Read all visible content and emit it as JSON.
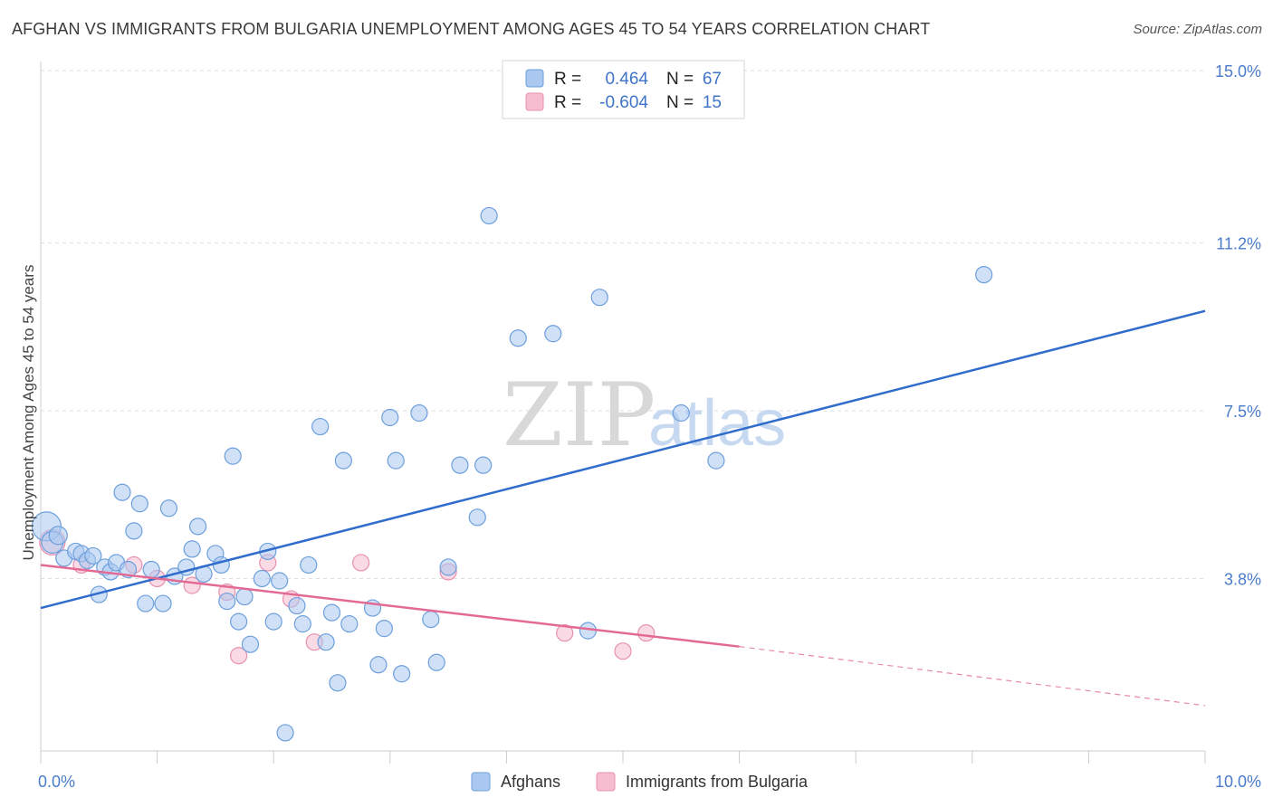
{
  "chart_data": {
    "type": "scatter",
    "title": "AFGHAN VS IMMIGRANTS FROM BULGARIA UNEMPLOYMENT AMONG AGES 45 TO 54 YEARS CORRELATION CHART",
    "source": "Source: ZipAtlas.com",
    "watermark": {
      "zip": "ZIP",
      "atlas": "atlas"
    },
    "ylabel": "Unemployment Among Ages 45 to 54 years",
    "xlabel": "",
    "xlim": [
      0,
      10
    ],
    "ylim": [
      0,
      15
    ],
    "x_ticks": [
      {
        "value": 0,
        "label": "0.0%"
      },
      {
        "value": 10,
        "label": "10.0%"
      }
    ],
    "y_ticks": [
      {
        "value": 3.8,
        "label": "3.8%"
      },
      {
        "value": 7.5,
        "label": "7.5%"
      },
      {
        "value": 11.2,
        "label": "11.2%"
      },
      {
        "value": 15.0,
        "label": "15.0%"
      }
    ],
    "colors": {
      "blue_fill": "#aac8f0",
      "blue_stroke": "#6c9fdc",
      "blue_line": "#2f6ccc",
      "pink_fill": "#f6bccf",
      "pink_stroke": "#e891b0",
      "pink_line": "#e26a95",
      "grid": "#dddddd",
      "axis": "#cccccc"
    },
    "legend_top": {
      "rows": [
        {
          "r_label": "R =",
          "r_value": "0.464",
          "n_label": "N =",
          "n_value": "67",
          "series": 0
        },
        {
          "r_label": "R =",
          "r_value": "-0.604",
          "n_label": "N =",
          "n_value": "15",
          "series": 1
        }
      ]
    },
    "series": [
      {
        "name": "Afghans",
        "trend": {
          "x0": 0,
          "y0": 3.15,
          "x1": 10,
          "y1": 9.7
        },
        "points": [
          [
            0.05,
            4.95,
            16
          ],
          [
            0.1,
            4.6,
            12
          ],
          [
            0.15,
            4.75,
            10
          ],
          [
            0.2,
            4.25,
            9
          ],
          [
            0.3,
            4.4,
            9
          ],
          [
            0.35,
            4.35,
            9
          ],
          [
            0.4,
            4.2,
            9
          ],
          [
            0.45,
            4.3,
            9
          ],
          [
            0.5,
            3.45,
            9
          ],
          [
            0.55,
            4.05,
            9
          ],
          [
            0.6,
            3.95,
            9
          ],
          [
            0.65,
            4.15,
            9
          ],
          [
            0.7,
            5.7,
            9
          ],
          [
            0.75,
            4.0,
            9
          ],
          [
            0.8,
            4.85,
            9
          ],
          [
            0.85,
            5.45,
            9
          ],
          [
            0.9,
            3.25,
            9
          ],
          [
            0.95,
            4.0,
            9
          ],
          [
            1.05,
            3.25,
            9
          ],
          [
            1.1,
            5.35,
            9
          ],
          [
            1.15,
            3.85,
            9
          ],
          [
            1.25,
            4.05,
            9
          ],
          [
            1.3,
            4.45,
            9
          ],
          [
            1.35,
            4.95,
            9
          ],
          [
            1.4,
            3.9,
            9
          ],
          [
            1.5,
            4.35,
            9
          ],
          [
            1.55,
            4.1,
            9
          ],
          [
            1.6,
            3.3,
            9
          ],
          [
            1.65,
            6.5,
            9
          ],
          [
            1.7,
            2.85,
            9
          ],
          [
            1.75,
            3.4,
            9
          ],
          [
            1.8,
            2.35,
            9
          ],
          [
            1.9,
            3.8,
            9
          ],
          [
            1.95,
            4.4,
            9
          ],
          [
            2.0,
            2.85,
            9
          ],
          [
            2.05,
            3.75,
            9
          ],
          [
            2.1,
            0.4,
            9
          ],
          [
            2.2,
            3.2,
            9
          ],
          [
            2.25,
            2.8,
            9
          ],
          [
            2.3,
            4.1,
            9
          ],
          [
            2.4,
            7.15,
            9
          ],
          [
            2.45,
            2.4,
            9
          ],
          [
            2.5,
            3.05,
            9
          ],
          [
            2.55,
            1.5,
            9
          ],
          [
            2.6,
            6.4,
            9
          ],
          [
            2.65,
            2.8,
            9
          ],
          [
            2.85,
            3.15,
            9
          ],
          [
            2.9,
            1.9,
            9
          ],
          [
            2.95,
            2.7,
            9
          ],
          [
            3.0,
            7.35,
            9
          ],
          [
            3.05,
            6.4,
            9
          ],
          [
            3.1,
            1.7,
            9
          ],
          [
            3.25,
            7.45,
            9
          ],
          [
            3.35,
            2.9,
            9
          ],
          [
            3.4,
            1.95,
            9
          ],
          [
            3.5,
            4.05,
            9
          ],
          [
            3.6,
            6.3,
            9
          ],
          [
            3.75,
            5.15,
            9
          ],
          [
            3.8,
            6.3,
            9
          ],
          [
            3.85,
            11.8,
            9
          ],
          [
            4.1,
            9.1,
            9
          ],
          [
            4.4,
            9.2,
            9
          ],
          [
            4.7,
            2.65,
            9
          ],
          [
            4.8,
            10.0,
            9
          ],
          [
            5.5,
            7.45,
            9
          ],
          [
            5.8,
            6.4,
            9
          ],
          [
            8.1,
            10.5,
            9
          ]
        ]
      },
      {
        "name": "Immigrants from Bulgaria",
        "trend": {
          "x0": 0,
          "y0": 4.1,
          "x1": 6.0,
          "y1": 2.3
        },
        "trend_dashed": {
          "x0": 6.0,
          "y0": 2.3,
          "x1": 10,
          "y1": 1.0
        },
        "points": [
          [
            0.1,
            4.6,
            14
          ],
          [
            0.35,
            4.1,
            9
          ],
          [
            0.8,
            4.1,
            9
          ],
          [
            1.0,
            3.8,
            9
          ],
          [
            1.3,
            3.65,
            9
          ],
          [
            1.6,
            3.5,
            9
          ],
          [
            1.7,
            2.1,
            9
          ],
          [
            1.95,
            4.15,
            9
          ],
          [
            2.15,
            3.35,
            9
          ],
          [
            2.35,
            2.4,
            9
          ],
          [
            2.75,
            4.15,
            9
          ],
          [
            3.5,
            3.95,
            9
          ],
          [
            4.5,
            2.6,
            9
          ],
          [
            5.0,
            2.2,
            9
          ],
          [
            5.2,
            2.6,
            9
          ]
        ]
      }
    ]
  }
}
